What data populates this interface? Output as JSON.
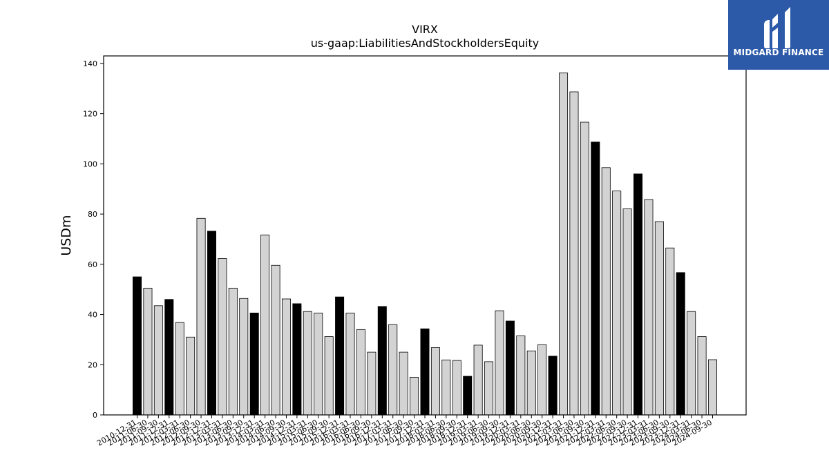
{
  "chart_data": {
    "type": "bar",
    "title": "VIRX",
    "subtitle": "us-gaap:LiabilitiesAndStockholdersEquity",
    "ylabel": "USDm",
    "xlabel": "",
    "ylim": [
      0,
      143
    ],
    "yticks": [
      0,
      20,
      40,
      60,
      80,
      100,
      120,
      140
    ],
    "categories": [
      "2010-12-31",
      "2011-06-30",
      "2011-09-30",
      "2011-12-31",
      "2012-03-31",
      "2012-06-30",
      "2012-09-30",
      "2012-12-31",
      "2013-03-31",
      "2013-06-30",
      "2013-09-30",
      "2013-12-31",
      "2014-03-31",
      "2014-06-30",
      "2014-09-30",
      "2014-12-31",
      "2015-03-31",
      "2015-06-30",
      "2015-09-30",
      "2015-12-31",
      "2016-03-31",
      "2016-06-30",
      "2016-09-30",
      "2016-12-31",
      "2017-03-31",
      "2017-06-30",
      "2017-09-30",
      "2017-12-31",
      "2018-03-31",
      "2018-06-30",
      "2018-09-30",
      "2018-12-31",
      "2019-03-31",
      "2019-06-30",
      "2019-09-30",
      "2019-12-31",
      "2020-03-31",
      "2020-06-30",
      "2020-09-30",
      "2020-12-31",
      "2021-03-31",
      "2021-06-30",
      "2021-09-30",
      "2021-12-31",
      "2022-03-31",
      "2022-06-30",
      "2022-09-30",
      "2022-12-31",
      "2023-03-31",
      "2023-06-30",
      "2023-09-30",
      "2023-12-31",
      "2024-03-31",
      "2024-06-30",
      "2024-09-30"
    ],
    "values": [
      55.0,
      50.5,
      43.5,
      46.0,
      36.8,
      31.0,
      78.3,
      73.2,
      62.3,
      50.5,
      46.4,
      40.6,
      71.7,
      59.6,
      46.2,
      44.3,
      41.2,
      40.6,
      31.2,
      47.0,
      40.6,
      34.0,
      25.0,
      43.2,
      36.0,
      25.0,
      15.0,
      34.3,
      26.8,
      21.9,
      21.7,
      15.4,
      27.8,
      21.2,
      41.5,
      37.4,
      31.5,
      25.5,
      28.0,
      23.4,
      136.2,
      128.7,
      116.6,
      108.7,
      98.5,
      89.2,
      82.1,
      96.0,
      85.8,
      77.0,
      66.5,
      56.7,
      41.2,
      31.2,
      22.0
    ],
    "highlight": [
      true,
      false,
      false,
      true,
      false,
      false,
      false,
      true,
      false,
      false,
      false,
      true,
      false,
      false,
      false,
      true,
      false,
      false,
      false,
      true,
      false,
      false,
      false,
      true,
      false,
      false,
      false,
      true,
      false,
      false,
      false,
      true,
      false,
      false,
      false,
      true,
      false,
      false,
      false,
      true,
      false,
      false,
      false,
      true,
      false,
      false,
      false,
      true,
      false,
      false,
      false,
      true,
      false,
      false,
      false
    ],
    "colors": {
      "highlight": "#000000",
      "normal": "#d3d3d3",
      "edge": "#000000"
    },
    "grid": false
  },
  "logo": {
    "text": "MIDGARD FINANCE",
    "background": "#2c5aa8",
    "icon": "midgard-logo-icon"
  }
}
